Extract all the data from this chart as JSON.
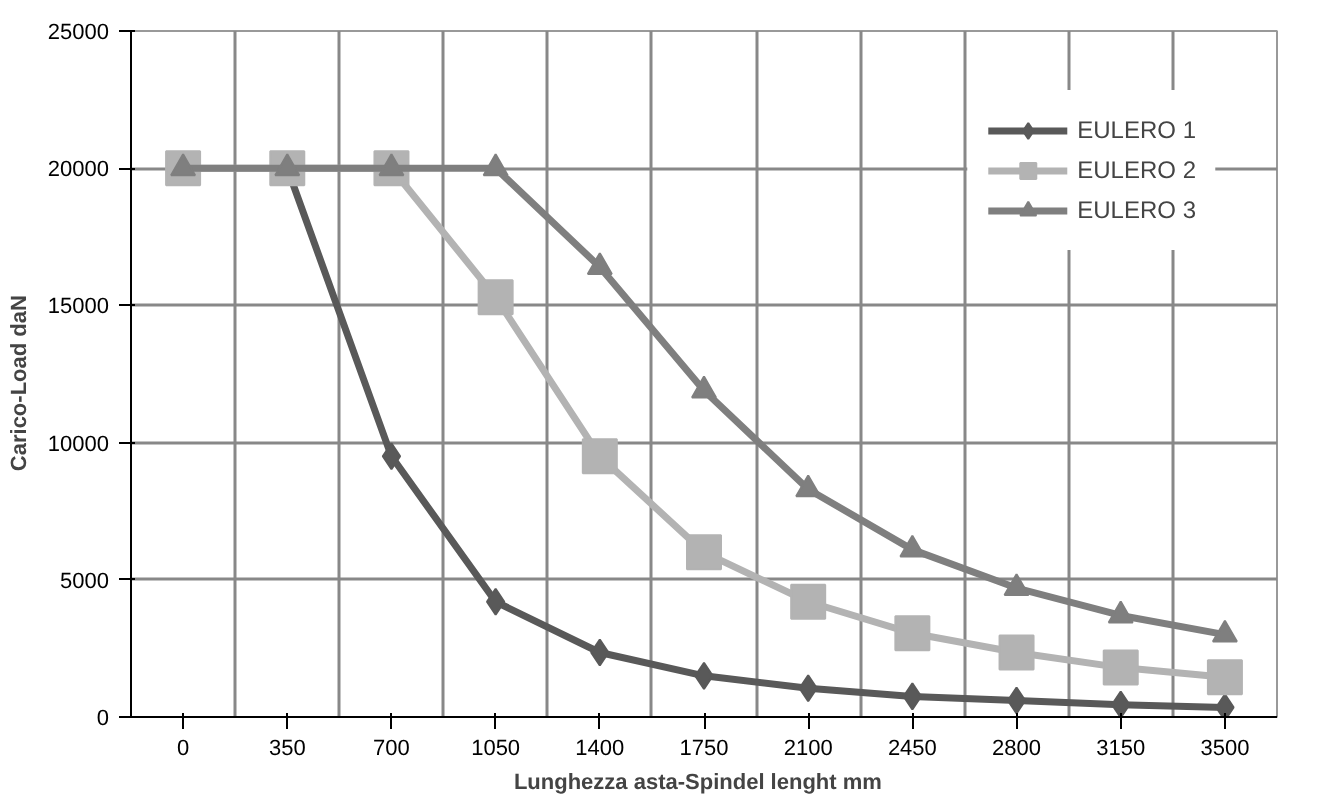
{
  "chart_data": {
    "type": "line",
    "xlabel": "Lunghezza asta-Spindel lenght   mm",
    "ylabel": "Carico-Load    daN",
    "categories": [
      "0",
      "350",
      "700",
      "1050",
      "1400",
      "1750",
      "2100",
      "2450",
      "2800",
      "3150",
      "3500"
    ],
    "series": [
      {
        "name": "EULERO 1",
        "color": "#595959",
        "marker": "diamond",
        "values": [
          null,
          20000,
          9500,
          4200,
          2350,
          1500,
          1050,
          750,
          600,
          450,
          350
        ]
      },
      {
        "name": "EULERO 2",
        "color": "#b3b3b3",
        "marker": "square",
        "values": [
          20000,
          20000,
          20000,
          15300,
          9500,
          6000,
          4200,
          3050,
          2350,
          1800,
          1450
        ]
      },
      {
        "name": "EULERO 3",
        "color": "#7f7f7f",
        "marker": "triangle",
        "values": [
          20000,
          20000,
          20000,
          20000,
          16400,
          11900,
          8300,
          6100,
          4700,
          3700,
          3000
        ]
      }
    ],
    "ylim": [
      0,
      25000
    ],
    "yticks": [
      0,
      5000,
      10000,
      15000,
      20000,
      25000
    ],
    "grid": true,
    "legend": "top right"
  }
}
